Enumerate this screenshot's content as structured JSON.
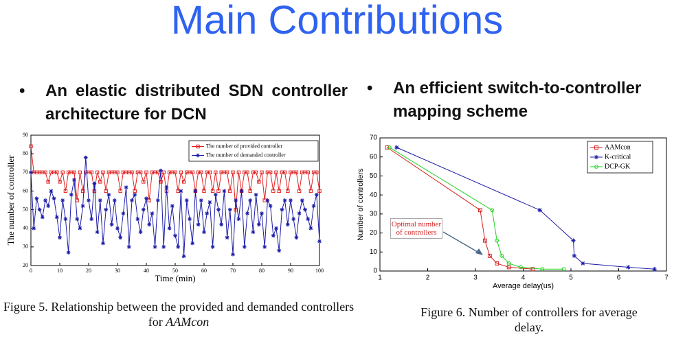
{
  "title": "Main Contributions",
  "left": {
    "bullet": "An elastic distributed SDN controller architecture for DCN",
    "caption": {
      "text": "Figure 5. Relationship between the provided and demanded controllers for",
      "italic": "AAMcon"
    }
  },
  "right": {
    "bullet": "An efficient switch-to-controller mapping scheme",
    "caption": "Figure 6. Number of controllers for average delay."
  },
  "chart_data": [
    {
      "type": "line",
      "xlabel": "Time (min)",
      "ylabel": "The number of controller",
      "xlim": [
        0,
        100
      ],
      "xticks": [
        0,
        10,
        20,
        30,
        40,
        50,
        60,
        70,
        80,
        90,
        100
      ],
      "ylim": [
        20,
        90
      ],
      "yticks": [
        20,
        30,
        40,
        50,
        60,
        70,
        80,
        90
      ],
      "legend": "upper right",
      "x": [
        0,
        1,
        2,
        3,
        4,
        5,
        6,
        7,
        8,
        9,
        10,
        11,
        12,
        13,
        14,
        15,
        16,
        17,
        18,
        19,
        20,
        21,
        22,
        23,
        24,
        25,
        26,
        27,
        28,
        29,
        30,
        31,
        32,
        33,
        34,
        35,
        36,
        37,
        38,
        39,
        40,
        41,
        42,
        43,
        44,
        45,
        46,
        47,
        48,
        49,
        50,
        51,
        52,
        53,
        54,
        55,
        56,
        57,
        58,
        59,
        60,
        61,
        62,
        63,
        64,
        65,
        66,
        67,
        68,
        69,
        70,
        71,
        72,
        73,
        74,
        75,
        76,
        77,
        78,
        79,
        80,
        81,
        82,
        83,
        84,
        85,
        86,
        87,
        88,
        89,
        90,
        91,
        92,
        93,
        94,
        95,
        96,
        97,
        98,
        99,
        100
      ],
      "series": [
        {
          "name": "The number of provided controller",
          "color": "#e02020",
          "marker": "square",
          "values": [
            84,
            70,
            70,
            70,
            70,
            70,
            65,
            70,
            70,
            70,
            65,
            70,
            60,
            70,
            70,
            70,
            55,
            70,
            60,
            70,
            70,
            70,
            60,
            70,
            65,
            70,
            60,
            70,
            70,
            70,
            70,
            60,
            70,
            70,
            70,
            70,
            60,
            70,
            70,
            65,
            70,
            55,
            70,
            70,
            70,
            65,
            70,
            60,
            70,
            70,
            70,
            60,
            70,
            65,
            70,
            70,
            70,
            60,
            70,
            70,
            60,
            70,
            70,
            60,
            70,
            60,
            70,
            70,
            70,
            60,
            70,
            50,
            70,
            60,
            70,
            70,
            60,
            70,
            70,
            65,
            70,
            55,
            70,
            70,
            60,
            70,
            60,
            70,
            70,
            60,
            70,
            70,
            70,
            60,
            70,
            70,
            70,
            60,
            70,
            70,
            60
          ]
        },
        {
          "name": "The number of demanded controller",
          "color": "#1a1aa8",
          "marker": "star",
          "values": [
            70,
            40,
            56,
            50,
            46,
            55,
            52,
            60,
            56,
            46,
            35,
            55,
            45,
            27,
            58,
            66,
            45,
            40,
            52,
            78,
            55,
            45,
            64,
            38,
            55,
            32,
            50,
            58,
            42,
            55,
            40,
            35,
            48,
            62,
            30,
            55,
            58,
            45,
            38,
            50,
            56,
            42,
            48,
            30,
            55,
            71,
            30,
            62,
            40,
            52,
            36,
            30,
            60,
            25,
            55,
            45,
            32,
            60,
            42,
            55,
            38,
            48,
            54,
            30,
            58,
            50,
            42,
            60,
            35,
            50,
            26,
            55,
            45,
            60,
            30,
            48,
            55,
            38,
            58,
            42,
            48,
            30,
            55,
            52,
            36,
            40,
            28,
            50,
            55,
            42,
            55,
            45,
            35,
            48,
            55,
            50,
            45,
            40,
            52,
            58,
            33
          ]
        }
      ]
    },
    {
      "type": "line",
      "xlabel": "Average delay(us)",
      "ylabel": "Number of controllers",
      "xlim": [
        1,
        7
      ],
      "xticks": [
        1,
        2,
        3,
        4,
        5,
        6,
        7
      ],
      "ylim": [
        0,
        70
      ],
      "yticks": [
        0,
        10,
        20,
        30,
        40,
        50,
        60,
        70
      ],
      "legend": "upper right",
      "annotation": "Optimal number of controllers",
      "series": [
        {
          "name": "AAMcon",
          "color": "#d42020",
          "marker": "square",
          "x": [
            1.15,
            3.1,
            3.2,
            3.3,
            3.45,
            3.7,
            4.2
          ],
          "values": [
            65,
            32,
            16,
            8,
            4,
            2,
            1
          ]
        },
        {
          "name": "K-critical",
          "color": "#1a1aa8",
          "marker": "star",
          "x": [
            1.35,
            4.35,
            5.05,
            5.07,
            5.25,
            6.2,
            6.75
          ],
          "values": [
            65,
            32,
            16,
            8,
            4,
            2,
            1
          ]
        },
        {
          "name": "DCP-GK",
          "color": "#20d020",
          "marker": "circle",
          "x": [
            1.2,
            3.35,
            3.45,
            3.55,
            3.7,
            3.95,
            4.4,
            4.85
          ],
          "values": [
            65,
            32,
            16,
            8,
            4,
            2,
            1,
            1
          ]
        }
      ]
    }
  ]
}
